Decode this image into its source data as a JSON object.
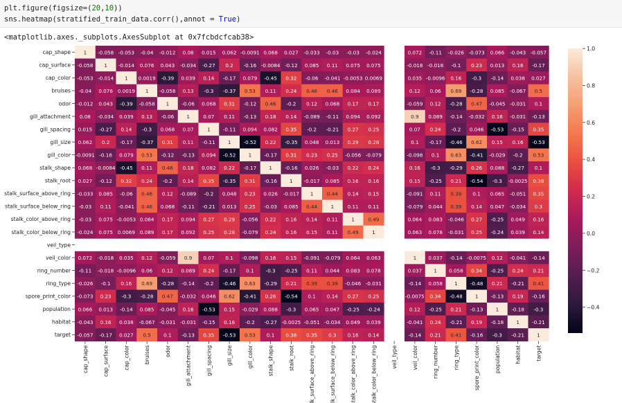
{
  "cell_input": {
    "line1_prefix": "plt.figure(figsize=(",
    "line1_n1": "20",
    "line1_sep": ",",
    "line1_n2": "10",
    "line1_suffix": "))",
    "line2_prefix": "sns.heatmap(stratified_train_data.corr(),annot = ",
    "line2_kw": "True",
    "line2_suffix": ")"
  },
  "cell_output": {
    "repr": "<matplotlib.axes._subplots.AxesSubplot at 0x7fcbdcfcab38>"
  },
  "chart_data": {
    "type": "heatmap",
    "title": "",
    "xlabel": "",
    "ylabel": "",
    "variables": [
      "cap_shape",
      "cap_surface",
      "cap_color",
      "bruises",
      "odor",
      "gill_attachment",
      "gill_spacing",
      "gill_size",
      "gill_color",
      "stalk_shape",
      "stalk_root",
      "stalk_surface_above_ring",
      "stalk_surface_below_ring",
      "stalk_color_above_ring",
      "stalk_color_below_ring",
      "veil_type",
      "veil_color",
      "ring_number",
      "ring_type",
      "spore_print_color",
      "population",
      "habitat",
      "target"
    ],
    "matrix": [
      [
        "1",
        "-0.058",
        "-0.053",
        "-0.04",
        "-0.012",
        "0.08",
        "0.015",
        "0.062",
        "-0.0091",
        "0.068",
        "0.027",
        "-0.033",
        "-0.03",
        "-0.03",
        "-0.024",
        null,
        "0.072",
        "-0.11",
        "-0.026",
        "-0.073",
        "0.066",
        "-0.043",
        "-0.057"
      ],
      [
        "-0.058",
        "1",
        "-0.014",
        "0.076",
        "0.043",
        "-0.034",
        "-0.27",
        "0.2",
        "-0.16",
        "-0.0084",
        "-0.12",
        "0.085",
        "0.11",
        "0.075",
        "0.075",
        null,
        "-0.018",
        "-0.018",
        "-0.1",
        "0.23",
        "0.013",
        "0.16",
        "-0.17"
      ],
      [
        "-0.053",
        "-0.014",
        "1",
        "0.0019",
        "-0.39",
        "0.039",
        "0.14",
        "-0.17",
        "0.079",
        "-0.45",
        "0.32",
        "-0.06",
        "-0.041",
        "-0.0053",
        "0.0069",
        null,
        "0.035",
        "-0.0096",
        "0.16",
        "-0.3",
        "-0.14",
        "0.038",
        "0.027"
      ],
      [
        "-0.04",
        "0.076",
        "0.0019",
        "1",
        "-0.058",
        "0.13",
        "-0.3",
        "-0.37",
        "0.53",
        "0.11",
        "0.24",
        "0.46",
        "0.46",
        "0.084",
        "0.089",
        null,
        "0.12",
        "0.06",
        "0.69",
        "-0.28",
        "0.085",
        "-0.067",
        "0.5"
      ],
      [
        "-0.012",
        "0.043",
        "-0.39",
        "-0.058",
        "1",
        "-0.06",
        "0.068",
        "0.31",
        "-0.12",
        "0.46",
        "-0.2",
        "0.12",
        "0.068",
        "0.17",
        "0.17",
        null,
        "-0.059",
        "0.12",
        "-0.28",
        "0.47",
        "-0.045",
        "-0.031",
        "0.1"
      ],
      [
        "0.08",
        "-0.034",
        "0.039",
        "0.13",
        "-0.06",
        "1",
        "0.07",
        "0.11",
        "-0.13",
        "0.18",
        "0.14",
        "-0.089",
        "-0.11",
        "0.094",
        "0.092",
        null,
        "0.9",
        "0.089",
        "-0.14",
        "-0.032",
        "0.16",
        "-0.031",
        "-0.13"
      ],
      [
        "0.015",
        "-0.27",
        "0.14",
        "-0.3",
        "0.068",
        "0.07",
        "1",
        "-0.11",
        "0.094",
        "0.082",
        "0.35",
        "-0.2",
        "-0.21",
        "0.27",
        "0.25",
        null,
        "0.07",
        "0.24",
        "-0.2",
        "0.046",
        "-0.53",
        "-0.15",
        "0.35"
      ],
      [
        "0.062",
        "0.2",
        "-0.17",
        "-0.37",
        "0.31",
        "0.11",
        "-0.11",
        "1",
        "-0.52",
        "0.22",
        "-0.35",
        "0.048",
        "0.013",
        "0.29",
        "0.28",
        null,
        "0.1",
        "-0.17",
        "-0.46",
        "0.62",
        "0.15",
        "0.16",
        "-0.53"
      ],
      [
        "-0.0091",
        "-0.16",
        "0.079",
        "0.53",
        "-0.12",
        "-0.13",
        "0.094",
        "-0.52",
        "1",
        "-0.17",
        "0.31",
        "0.23",
        "0.25",
        "-0.056",
        "-0.079",
        null,
        "-0.098",
        "0.1",
        "0.63",
        "-0.41",
        "-0.029",
        "-0.2",
        "0.53"
      ],
      [
        "0.068",
        "-0.0084",
        "-0.45",
        "0.11",
        "0.46",
        "0.18",
        "0.082",
        "0.22",
        "-0.17",
        "1",
        "-0.16",
        "0.026",
        "-0.03",
        "0.22",
        "0.24",
        null,
        "0.16",
        "-0.3",
        "-0.29",
        "0.26",
        "0.088",
        "-0.27",
        "0.1"
      ],
      [
        "0.027",
        "-0.12",
        "0.32",
        "0.24",
        "-0.2",
        "0.14",
        "0.35",
        "-0.35",
        "0.31",
        "-0.16",
        "1",
        "-0.017",
        "0.085",
        "0.16",
        "0.16",
        null,
        "0.15",
        "-0.25",
        "0.21",
        "-0.54",
        "-0.3",
        "-0.0025",
        "0.38"
      ],
      [
        "-0.033",
        "0.085",
        "-0.06",
        "0.46",
        "0.12",
        "-0.089",
        "-0.2",
        "0.048",
        "0.23",
        "0.026",
        "-0.017",
        "1",
        "0.44",
        "0.14",
        "0.15",
        null,
        "-0.091",
        "0.11",
        "0.39",
        "0.1",
        "0.065",
        "-0.051",
        "0.35"
      ],
      [
        "-0.03",
        "0.11",
        "-0.041",
        "0.46",
        "0.068",
        "-0.11",
        "-0.21",
        "0.013",
        "0.25",
        "-0.03",
        "0.085",
        "0.44",
        "1",
        "0.11",
        "0.11",
        null,
        "-0.079",
        "0.044",
        "0.39",
        "0.14",
        "0.047",
        "-0.034",
        "0.3"
      ],
      [
        "-0.03",
        "0.075",
        "-0.0053",
        "0.084",
        "0.17",
        "0.094",
        "0.27",
        "0.29",
        "-0.056",
        "0.22",
        "0.16",
        "0.14",
        "0.11",
        "1",
        "0.49",
        null,
        "0.064",
        "0.083",
        "-0.046",
        "0.27",
        "-0.25",
        "0.049",
        "0.16"
      ],
      [
        "-0.024",
        "0.075",
        "0.0069",
        "0.089",
        "0.17",
        "0.092",
        "0.25",
        "0.28",
        "-0.079",
        "0.24",
        "0.16",
        "0.15",
        "0.11",
        "0.49",
        "1",
        null,
        "0.063",
        "0.078",
        "-0.031",
        "0.25",
        "-0.24",
        "0.039",
        "0.14"
      ],
      [
        null,
        null,
        null,
        null,
        null,
        null,
        null,
        null,
        null,
        null,
        null,
        null,
        null,
        null,
        null,
        null,
        null,
        null,
        null,
        null,
        null,
        null,
        null
      ],
      [
        "0.072",
        "-0.018",
        "0.035",
        "0.12",
        "-0.059",
        "0.9",
        "0.07",
        "0.1",
        "-0.098",
        "0.16",
        "0.15",
        "-0.091",
        "-0.079",
        "0.064",
        "0.063",
        null,
        "1",
        "0.037",
        "-0.14",
        "-0.0075",
        "0.12",
        "-0.041",
        "-0.14"
      ],
      [
        "-0.11",
        "-0.018",
        "-0.0096",
        "0.06",
        "0.12",
        "0.089",
        "0.24",
        "-0.17",
        "0.1",
        "-0.3",
        "-0.25",
        "0.11",
        "0.044",
        "0.083",
        "0.078",
        null,
        "0.037",
        "1",
        "0.058",
        "0.34",
        "-0.25",
        "0.24",
        "0.21"
      ],
      [
        "-0.026",
        "-0.1",
        "0.16",
        "0.69",
        "-0.28",
        "-0.14",
        "-0.2",
        "-0.46",
        "0.63",
        "-0.29",
        "0.21",
        "0.39",
        "0.39",
        "-0.046",
        "-0.031",
        null,
        "-0.14",
        "0.058",
        "1",
        "-0.48",
        "0.21",
        "-0.21",
        "0.41"
      ],
      [
        "-0.073",
        "0.23",
        "-0.3",
        "-0.28",
        "0.47",
        "-0.032",
        "0.046",
        "0.62",
        "-0.41",
        "0.26",
        "-0.54",
        "0.1",
        "0.14",
        "0.27",
        "0.25",
        null,
        "-0.0075",
        "0.34",
        "-0.48",
        "1",
        "-0.13",
        "0.19",
        "-0.16"
      ],
      [
        "0.066",
        "0.013",
        "-0.14",
        "0.085",
        "-0.045",
        "0.16",
        "-0.53",
        "0.15",
        "-0.029",
        "0.088",
        "-0.3",
        "0.065",
        "0.047",
        "-0.25",
        "-0.24",
        null,
        "0.12",
        "-0.25",
        "0.21",
        "-0.13",
        "1",
        "-0.18",
        "-0.3"
      ],
      [
        "-0.043",
        "0.16",
        "0.038",
        "-0.067",
        "-0.031",
        "-0.031",
        "-0.15",
        "0.16",
        "-0.2",
        "-0.27",
        "-0.0025",
        "-0.051",
        "-0.034",
        "0.049",
        "0.039",
        null,
        "-0.041",
        "0.24",
        "-0.21",
        "0.19",
        "-0.18",
        "1",
        "-0.21"
      ],
      [
        "-0.057",
        "-0.17",
        "0.027",
        "0.5",
        "0.1",
        "-0.13",
        "0.35",
        "-0.53",
        "0.53",
        "0.1",
        "0.38",
        "0.35",
        "0.3",
        "0.16",
        "0.14",
        null,
        "-0.14",
        "0.21",
        "0.41",
        "-0.16",
        "-0.3",
        "-0.21",
        "1"
      ]
    ],
    "vmin": -0.54,
    "vmax": 1.0,
    "colorbar_ticks": [
      "1.0",
      "0.8",
      "0.6",
      "0.4",
      "0.2",
      "0.0",
      "−0.2",
      "−0.4"
    ],
    "colormap": "rocket",
    "colormap_stops": [
      "#03051a",
      "#2b1a3a",
      "#541d50",
      "#7d1d5a",
      "#a8195b",
      "#d02b4e",
      "#ea4e3f",
      "#f4774f",
      "#f59e72",
      "#f6c19f",
      "#faebdd"
    ]
  }
}
